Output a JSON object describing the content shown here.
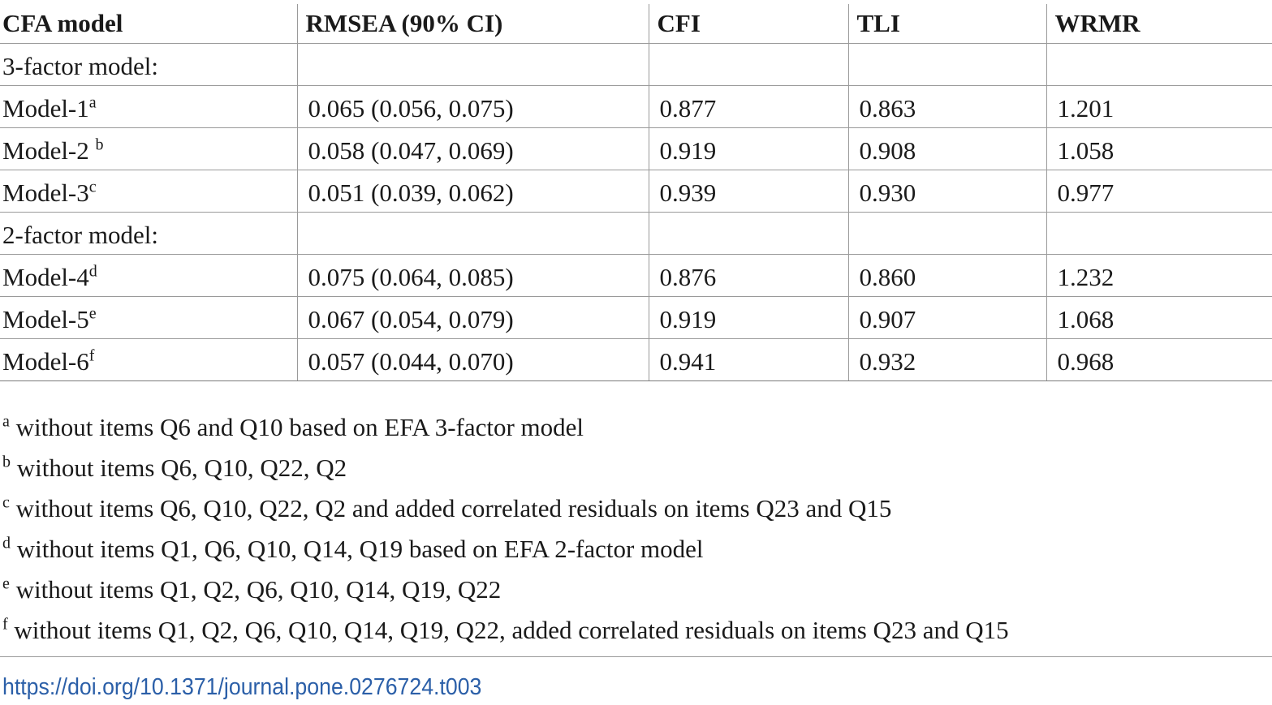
{
  "table": {
    "headers": [
      "CFA model",
      "RMSEA (90% CI)",
      "CFI",
      "TLI",
      "WRMR"
    ],
    "rows": [
      {
        "model": "3-factor model:",
        "sup": "",
        "rmsea": "",
        "cfi": "",
        "tli": "",
        "wrmr": ""
      },
      {
        "model": "Model-1",
        "sup": "a",
        "rmsea": "0.065 (0.056, 0.075)",
        "cfi": "0.877",
        "tli": "0.863",
        "wrmr": "1.201"
      },
      {
        "model": "Model-2 ",
        "sup": "b",
        "rmsea": "0.058 (0.047, 0.069)",
        "cfi": "0.919",
        "tli": "0.908",
        "wrmr": "1.058"
      },
      {
        "model": "Model-3",
        "sup": "c",
        "rmsea": "0.051 (0.039, 0.062)",
        "cfi": "0.939",
        "tli": "0.930",
        "wrmr": "0.977"
      },
      {
        "model": "2-factor model:",
        "sup": "",
        "rmsea": "",
        "cfi": "",
        "tli": "",
        "wrmr": ""
      },
      {
        "model": "Model-4",
        "sup": "d",
        "rmsea": "0.075 (0.064, 0.085)",
        "cfi": "0.876",
        "tli": "0.860",
        "wrmr": "1.232"
      },
      {
        "model": "Model-5",
        "sup": "e",
        "rmsea": "0.067 (0.054, 0.079)",
        "cfi": "0.919",
        "tli": "0.907",
        "wrmr": "1.068"
      },
      {
        "model": "Model-6",
        "sup": "f",
        "rmsea": "0.057 (0.044, 0.070)",
        "cfi": "0.941",
        "tli": "0.932",
        "wrmr": "0.968"
      }
    ]
  },
  "footnotes": [
    {
      "mark": "a",
      "text": " without items Q6 and Q10 based on EFA 3-factor model"
    },
    {
      "mark": "b",
      "text": " without items Q6, Q10, Q22, Q2"
    },
    {
      "mark": "c",
      "text": " without items Q6, Q10, Q22, Q2 and added correlated residuals on items Q23 and Q15"
    },
    {
      "mark": "d",
      "text": " without items Q1, Q6, Q10, Q14, Q19 based on EFA 2-factor model"
    },
    {
      "mark": "e",
      "text": " without items Q1, Q2, Q6, Q10, Q14, Q19, Q22"
    },
    {
      "mark": "f",
      "text": " without items Q1, Q2, Q6, Q10, Q14, Q19, Q22, added correlated residuals on items Q23 and Q15"
    }
  ],
  "doi": "https://doi.org/10.1371/journal.pone.0276724.t003"
}
